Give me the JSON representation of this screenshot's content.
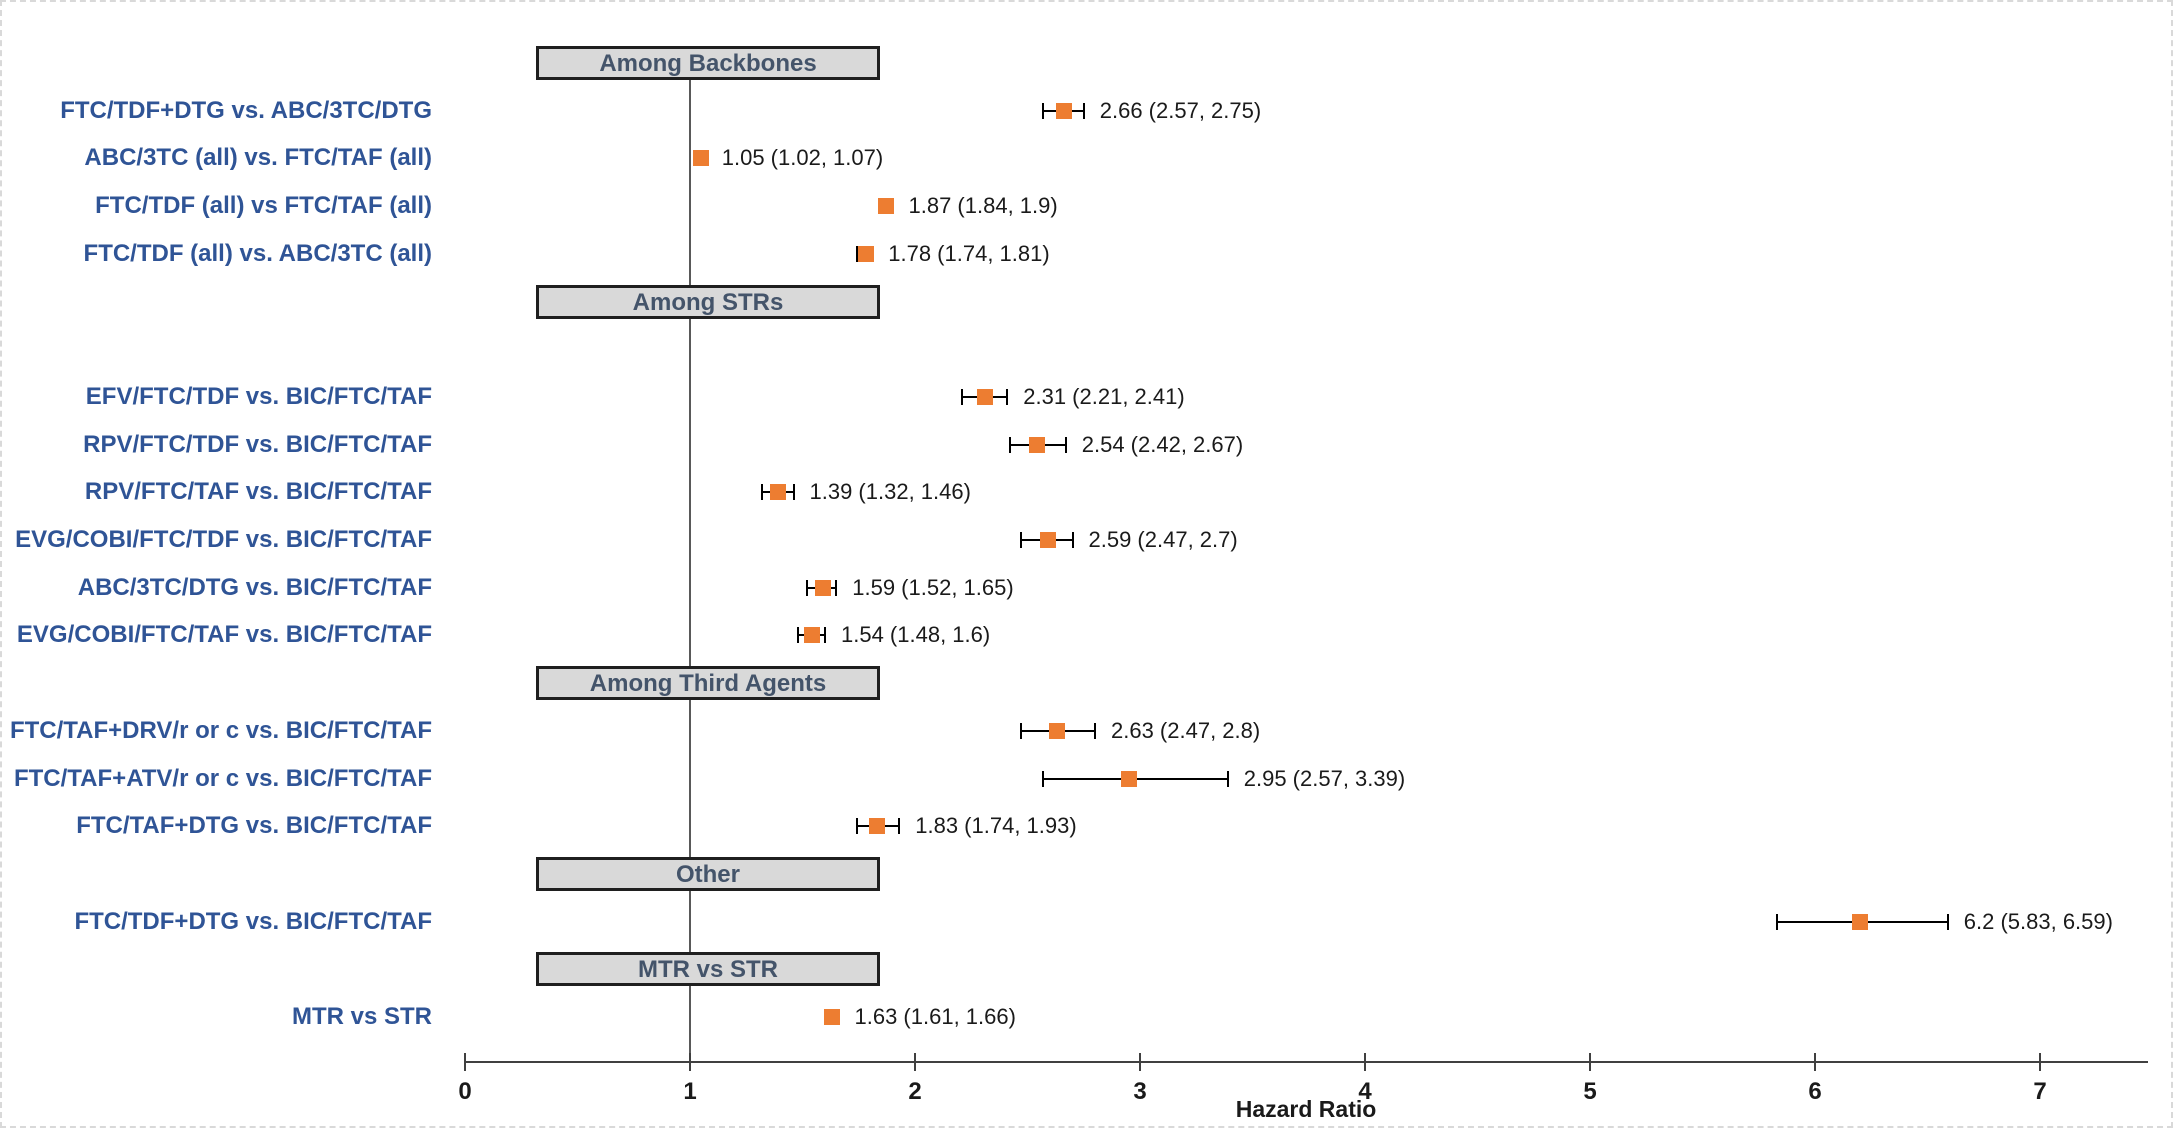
{
  "chart_data": {
    "type": "scatter",
    "subtype": "forest-plot",
    "title": "",
    "xlabel": "Hazard Ratio",
    "ylabel": "",
    "xlim": [
      0,
      7.5
    ],
    "x_ticks": [
      "0",
      "1",
      "2",
      "3",
      "4",
      "5",
      "6",
      "7"
    ],
    "x_tick_values": [
      0,
      1,
      2,
      3,
      4,
      5,
      6,
      7
    ],
    "grid": false,
    "legend_position": "none",
    "reference_line_x": 1,
    "colors": {
      "marker": "#ED7D31",
      "row_label": "#2F5496",
      "header_text": "#44546A",
      "header_fill": "#D9D9D9",
      "header_border": "#1F1F1F",
      "axis": "#404040",
      "refline": "#595959",
      "value_text": "#1A1A1A",
      "frame_border": "#D9D9D9"
    },
    "rows": [
      {
        "type": "header",
        "label": "Among Backbones"
      },
      {
        "type": "item",
        "label": "FTC/TDF+DTG vs. ABC/3TC/DTG",
        "hr": 2.66,
        "ci_low": 2.57,
        "ci_high": 2.75,
        "hr_label": "2.66 (2.57, 2.75)"
      },
      {
        "type": "item",
        "label": "ABC/3TC (all) vs. FTC/TAF (all)",
        "hr": 1.05,
        "ci_low": 1.02,
        "ci_high": 1.07,
        "hr_label": "1.05 (1.02, 1.07)"
      },
      {
        "type": "item",
        "label": "FTC/TDF (all) vs FTC/TAF (all)",
        "hr": 1.87,
        "ci_low": 1.84,
        "ci_high": 1.9,
        "hr_label": "1.87 (1.84, 1.9)"
      },
      {
        "type": "item",
        "label": "FTC/TDF (all) vs. ABC/3TC (all)",
        "hr": 1.78,
        "ci_low": 1.74,
        "ci_high": 1.81,
        "hr_label": "1.78 (1.74, 1.81)"
      },
      {
        "type": "header",
        "label": "Among STRs"
      },
      {
        "type": "spacer"
      },
      {
        "type": "item",
        "label": "EFV/FTC/TDF vs. BIC/FTC/TAF",
        "hr": 2.31,
        "ci_low": 2.21,
        "ci_high": 2.41,
        "hr_label": "2.31 (2.21, 2.41)"
      },
      {
        "type": "item",
        "label": "RPV/FTC/TDF vs. BIC/FTC/TAF",
        "hr": 2.54,
        "ci_low": 2.42,
        "ci_high": 2.67,
        "hr_label": "2.54 (2.42, 2.67)"
      },
      {
        "type": "item",
        "label": "RPV/FTC/TAF vs. BIC/FTC/TAF",
        "hr": 1.39,
        "ci_low": 1.32,
        "ci_high": 1.46,
        "hr_label": "1.39 (1.32, 1.46)"
      },
      {
        "type": "item",
        "label": "EVG/COBI/FTC/TDF vs. BIC/FTC/TAF",
        "hr": 2.59,
        "ci_low": 2.47,
        "ci_high": 2.7,
        "hr_label": "2.59 (2.47, 2.7)"
      },
      {
        "type": "item",
        "label": "ABC/3TC/DTG vs. BIC/FTC/TAF",
        "hr": 1.59,
        "ci_low": 1.52,
        "ci_high": 1.65,
        "hr_label": "1.59 (1.52, 1.65)"
      },
      {
        "type": "item",
        "label": "EVG/COBI/FTC/TAF vs. BIC/FTC/TAF",
        "hr": 1.54,
        "ci_low": 1.48,
        "ci_high": 1.6,
        "hr_label": "1.54 (1.48, 1.6)"
      },
      {
        "type": "header",
        "label": "Among Third Agents"
      },
      {
        "type": "item",
        "label": "FTC/TAF+DRV/r or c vs. BIC/FTC/TAF",
        "hr": 2.63,
        "ci_low": 2.47,
        "ci_high": 2.8,
        "hr_label": "2.63 (2.47, 2.8)"
      },
      {
        "type": "item",
        "label": "FTC/TAF+ATV/r or c vs. BIC/FTC/TAF",
        "hr": 2.95,
        "ci_low": 2.57,
        "ci_high": 3.39,
        "hr_label": "2.95 (2.57, 3.39)"
      },
      {
        "type": "item",
        "label": "FTC/TAF+DTG vs. BIC/FTC/TAF",
        "hr": 1.83,
        "ci_low": 1.74,
        "ci_high": 1.93,
        "hr_label": "1.83 (1.74, 1.93)"
      },
      {
        "type": "header",
        "label": "Other"
      },
      {
        "type": "item",
        "label": "FTC/TDF+DTG vs. BIC/FTC/TAF",
        "hr": 6.2,
        "ci_low": 5.83,
        "ci_high": 6.59,
        "hr_label": "6.2 (5.83, 6.59)"
      },
      {
        "type": "header",
        "label": "MTR vs STR"
      },
      {
        "type": "item",
        "label": "MTR vs STR",
        "hr": 1.63,
        "ci_low": 1.61,
        "ci_high": 1.66,
        "hr_label": "1.63 (1.61, 1.66)"
      }
    ]
  }
}
